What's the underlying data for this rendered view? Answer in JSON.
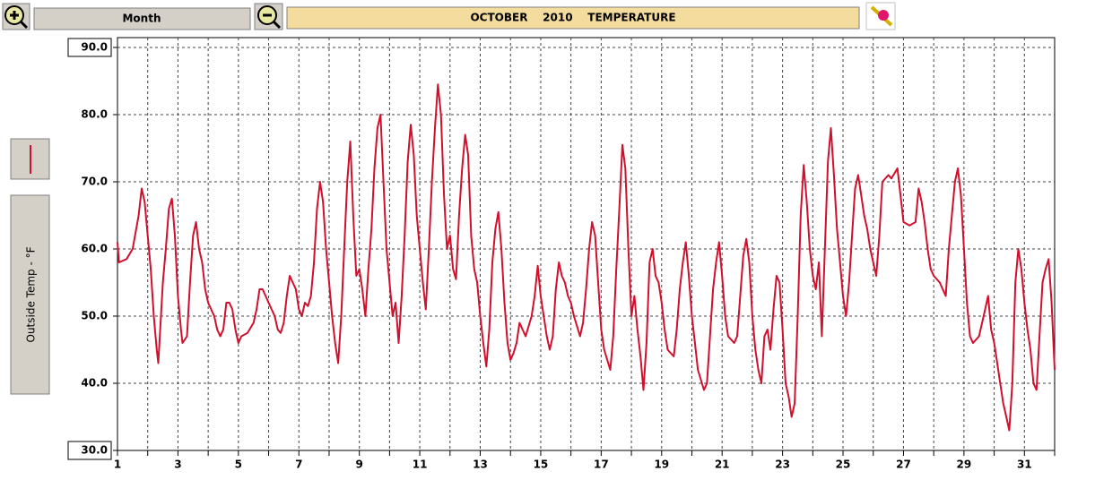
{
  "ui": {
    "period_button": "Month"
  },
  "chart_data": {
    "type": "line",
    "title": "OCTOBER    2010    TEMPERATURE",
    "x": [
      1.0,
      1.05,
      1.3,
      1.5,
      1.7,
      1.8,
      1.9,
      2.0,
      2.1,
      2.2,
      2.3,
      2.35,
      2.4,
      2.5,
      2.6,
      2.7,
      2.8,
      2.9,
      3.0,
      3.1,
      3.15,
      3.3,
      3.4,
      3.5,
      3.6,
      3.7,
      3.8,
      3.9,
      4.0,
      4.1,
      4.2,
      4.3,
      4.4,
      4.5,
      4.6,
      4.7,
      4.8,
      4.9,
      5.0,
      5.1,
      5.3,
      5.5,
      5.6,
      5.7,
      5.8,
      5.9,
      6.0,
      6.2,
      6.3,
      6.4,
      6.5,
      6.6,
      6.7,
      6.8,
      6.9,
      7.0,
      7.1,
      7.2,
      7.3,
      7.4,
      7.5,
      7.6,
      7.7,
      7.8,
      7.9,
      8.0,
      8.1,
      8.2,
      8.3,
      8.4,
      8.5,
      8.6,
      8.7,
      8.8,
      8.9,
      9.0,
      9.1,
      9.2,
      9.3,
      9.4,
      9.5,
      9.6,
      9.7,
      9.8,
      9.9,
      10.0,
      10.1,
      10.2,
      10.3,
      10.4,
      10.5,
      10.6,
      10.7,
      10.8,
      10.9,
      11.0,
      11.1,
      11.2,
      11.3,
      11.4,
      11.5,
      11.6,
      11.7,
      11.8,
      11.9,
      12.0,
      12.1,
      12.2,
      12.3,
      12.4,
      12.5,
      12.6,
      12.7,
      12.8,
      12.9,
      13.0,
      13.1,
      13.2,
      13.3,
      13.4,
      13.5,
      13.6,
      13.7,
      13.8,
      13.9,
      14.0,
      14.1,
      14.2,
      14.3,
      14.5,
      14.7,
      14.8,
      14.9,
      15.0,
      15.1,
      15.2,
      15.3,
      15.4,
      15.5,
      15.6,
      15.7,
      15.8,
      15.9,
      16.0,
      16.1,
      16.3,
      16.4,
      16.5,
      16.6,
      16.7,
      16.8,
      16.9,
      17.0,
      17.1,
      17.3,
      17.4,
      17.5,
      17.6,
      17.7,
      17.8,
      17.9,
      18.0,
      18.1,
      18.2,
      18.3,
      18.4,
      18.5,
      18.6,
      18.7,
      18.8,
      18.9,
      19.0,
      19.1,
      19.2,
      19.4,
      19.5,
      19.6,
      19.7,
      19.8,
      19.9,
      20.0,
      20.1,
      20.2,
      20.4,
      20.5,
      20.6,
      20.7,
      20.8,
      20.9,
      21.0,
      21.1,
      21.2,
      21.4,
      21.5,
      21.6,
      21.7,
      21.8,
      21.9,
      22.0,
      22.1,
      22.2,
      22.3,
      22.4,
      22.5,
      22.6,
      22.7,
      22.8,
      22.9,
      23.0,
      23.1,
      23.2,
      23.3,
      23.4,
      23.5,
      23.6,
      23.7,
      23.8,
      23.9,
      24.0,
      24.1,
      24.2,
      24.3,
      24.4,
      24.5,
      24.6,
      24.7,
      24.8,
      24.9,
      25.0,
      25.1,
      25.2,
      25.3,
      25.4,
      25.5,
      25.6,
      25.7,
      25.8,
      25.9,
      26.0,
      26.1,
      26.2,
      26.3,
      26.5,
      26.6,
      26.8,
      26.9,
      27.0,
      27.2,
      27.4,
      27.5,
      27.6,
      27.7,
      27.8,
      27.9,
      28.0,
      28.2,
      28.4,
      28.5,
      28.6,
      28.7,
      28.8,
      28.9,
      29.0,
      29.1,
      29.2,
      29.3,
      29.5,
      29.6,
      29.7,
      29.8,
      29.9,
      30.0,
      30.1,
      30.2,
      30.3,
      30.4,
      30.5,
      30.6,
      30.7,
      30.8,
      30.9,
      31.0,
      31.1,
      31.2,
      31.3,
      31.4,
      31.5,
      31.6,
      31.7,
      31.8,
      31.9,
      32.0
    ],
    "series": [
      {
        "name": "Outside Temp - °F",
        "color": "#d0102c",
        "values": [
          61,
          58,
          58.5,
          60,
          65,
          69,
          67,
          62,
          57,
          50,
          45,
          43,
          47,
          55,
          60,
          66,
          67.5,
          62,
          53,
          48,
          46,
          47,
          55,
          62,
          64,
          60,
          58,
          54,
          52,
          51,
          50,
          48,
          47,
          48,
          52,
          52,
          51,
          48,
          46,
          47,
          47.5,
          49,
          51,
          54,
          54,
          53,
          52,
          50,
          48,
          47.5,
          49,
          53,
          56,
          55,
          54,
          51,
          50,
          52,
          51.5,
          53,
          58,
          66,
          70,
          67,
          60,
          55,
          50,
          46,
          43,
          50,
          60,
          70,
          76,
          65,
          56,
          57,
          54,
          50,
          57,
          63,
          72,
          78,
          80,
          70,
          60,
          55,
          50,
          52,
          46,
          53,
          62,
          73,
          78.5,
          74,
          65,
          60,
          55,
          51,
          60,
          70,
          78,
          84.5,
          80,
          68,
          60,
          62,
          57,
          55.5,
          65,
          72,
          77,
          74,
          62,
          57,
          55,
          50,
          46,
          42.5,
          48,
          58,
          63,
          65.5,
          60,
          52,
          46,
          43.5,
          44.5,
          46,
          49,
          47,
          50,
          53,
          57.5,
          53,
          50,
          47,
          45,
          47,
          54,
          58,
          56,
          55,
          53,
          52,
          50,
          47,
          49,
          54,
          60,
          64,
          62,
          55,
          48,
          45,
          42,
          47,
          57,
          66,
          75.5,
          72,
          60,
          50,
          53,
          48,
          44,
          39,
          46,
          58,
          60,
          56,
          55,
          52,
          48,
          45,
          44,
          48,
          54,
          58,
          61,
          56,
          50,
          46,
          42,
          39,
          40,
          47,
          54,
          58,
          61,
          56,
          50,
          47,
          46,
          47,
          53,
          59,
          61.5,
          58,
          50,
          45,
          42,
          40,
          47,
          48,
          45,
          51,
          56,
          55,
          48,
          40,
          38,
          35,
          37,
          50,
          65,
          72.5,
          67,
          60,
          56,
          54,
          58,
          47,
          60,
          73,
          78,
          71,
          63,
          58,
          53,
          50,
          55,
          62,
          69,
          71,
          68,
          65,
          63,
          60,
          58,
          56,
          62,
          70,
          71,
          70.5,
          72,
          68,
          64,
          63.5,
          64,
          69,
          67,
          64,
          60,
          57,
          56,
          55,
          53,
          60,
          65,
          70,
          72,
          68,
          60,
          52,
          47,
          46,
          47,
          49,
          51,
          53,
          48,
          46,
          43,
          40,
          37,
          35,
          33,
          40,
          55,
          60,
          57,
          52,
          48,
          45,
          40,
          39,
          47,
          55,
          57,
          58.5,
          52,
          42
        ]
      }
    ],
    "xlim": [
      1,
      32
    ],
    "xticks": [
      1,
      3,
      5,
      7,
      9,
      11,
      13,
      15,
      17,
      19,
      21,
      23,
      25,
      27,
      29,
      31
    ],
    "xminor_ticks": [
      2,
      4,
      6,
      8,
      10,
      12,
      14,
      16,
      18,
      20,
      22,
      24,
      26,
      28,
      30,
      32
    ],
    "ylim": [
      30,
      90
    ],
    "yticks": [
      {
        "value": 30,
        "label": "30.0"
      },
      {
        "value": 40,
        "label": "40.0"
      },
      {
        "value": 50,
        "label": "50.0"
      },
      {
        "value": 60,
        "label": "60.0"
      },
      {
        "value": 70,
        "label": "70.0"
      },
      {
        "value": 80,
        "label": "80.0"
      },
      {
        "value": 90,
        "label": "90.0"
      }
    ],
    "grid": true
  }
}
